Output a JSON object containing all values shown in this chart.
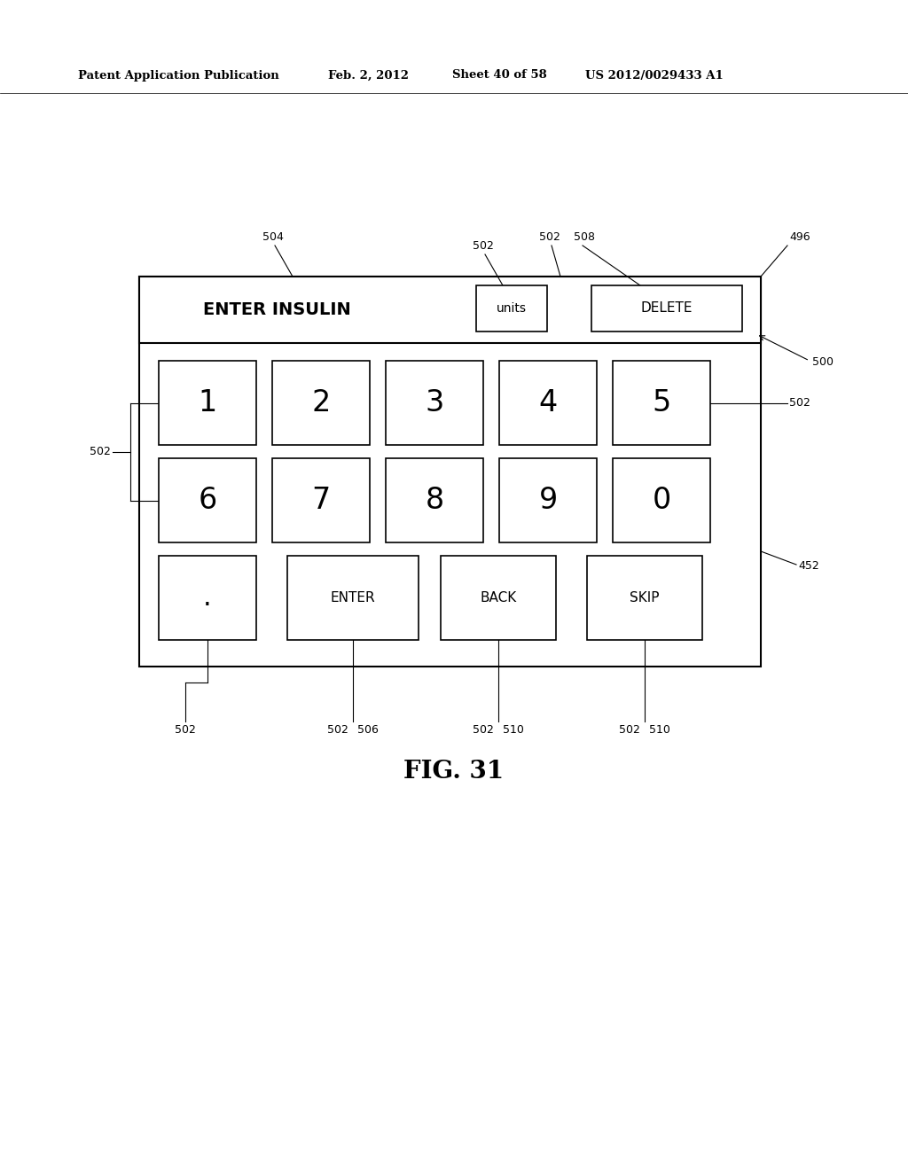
{
  "bg_color": "#ffffff",
  "header_text": "Patent Application Publication",
  "header_date": "Feb. 2, 2012",
  "header_sheet": "Sheet 40 of 58",
  "header_patent": "US 2012/0029433 A1",
  "figure_label": "FIG. 31",
  "enter_insulin_text": "ENTER INSULIN",
  "units_label": "units",
  "delete_label": "DELETE",
  "num_row1": [
    "1",
    "2",
    "3",
    "4",
    "5"
  ],
  "num_row2": [
    "6",
    "7",
    "8",
    "9",
    "0"
  ],
  "bottom_row": [
    ".",
    "ENTER",
    "BACK",
    "SKIP"
  ]
}
